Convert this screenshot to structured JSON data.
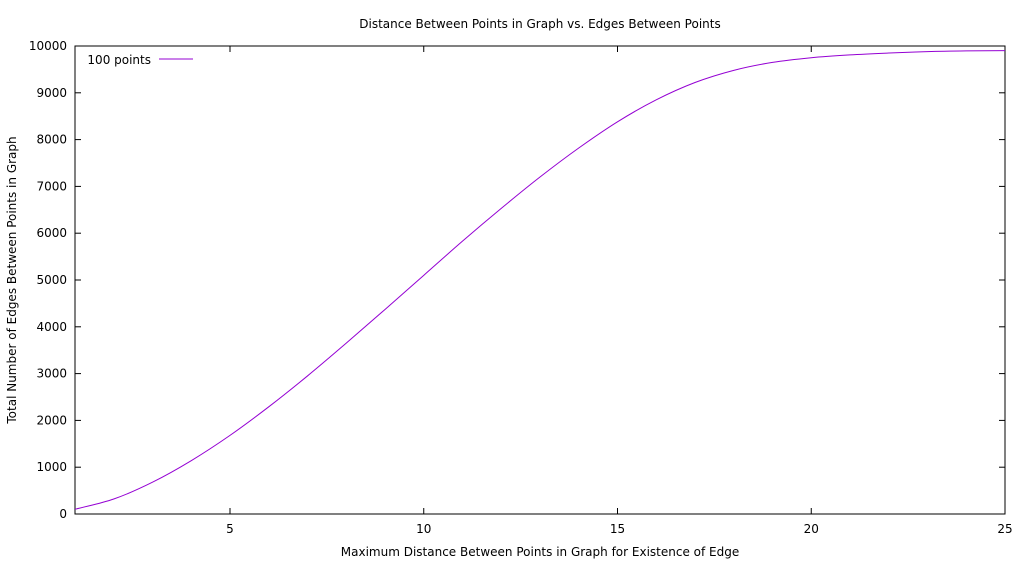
{
  "chart_data": {
    "type": "line",
    "title": "Distance Between Points in Graph vs. Edges Between Points",
    "xlabel": "Maximum Distance Between Points in Graph for Existence of Edge",
    "ylabel": "Total Number of Edges Between Points in Graph",
    "xlim": [
      1,
      25
    ],
    "ylim": [
      0,
      10000
    ],
    "xticks": [
      5,
      10,
      15,
      20,
      25
    ],
    "xtick_labels": [
      "5",
      "10",
      "15",
      "20",
      "25"
    ],
    "yticks": [
      0,
      1000,
      2000,
      3000,
      4000,
      5000,
      6000,
      7000,
      8000,
      9000,
      10000
    ],
    "ytick_labels": [
      "0",
      "1000",
      "2000",
      "3000",
      "4000",
      "5000",
      "6000",
      "7000",
      "8000",
      "9000",
      "10000"
    ],
    "grid": false,
    "legend_position": "top-left",
    "series": [
      {
        "name": "100 points",
        "color": "#9400d3",
        "x": [
          1,
          2,
          3,
          4,
          5,
          6,
          7,
          8,
          9,
          10,
          11,
          12,
          13,
          14,
          15,
          16,
          17,
          18,
          19,
          20,
          21,
          22,
          23,
          24,
          25
        ],
        "y": [
          100,
          320,
          680,
          1140,
          1680,
          2290,
          2950,
          3650,
          4370,
          5100,
          5830,
          6530,
          7200,
          7820,
          8380,
          8850,
          9220,
          9480,
          9650,
          9750,
          9810,
          9850,
          9880,
          9895,
          9900
        ]
      }
    ]
  }
}
